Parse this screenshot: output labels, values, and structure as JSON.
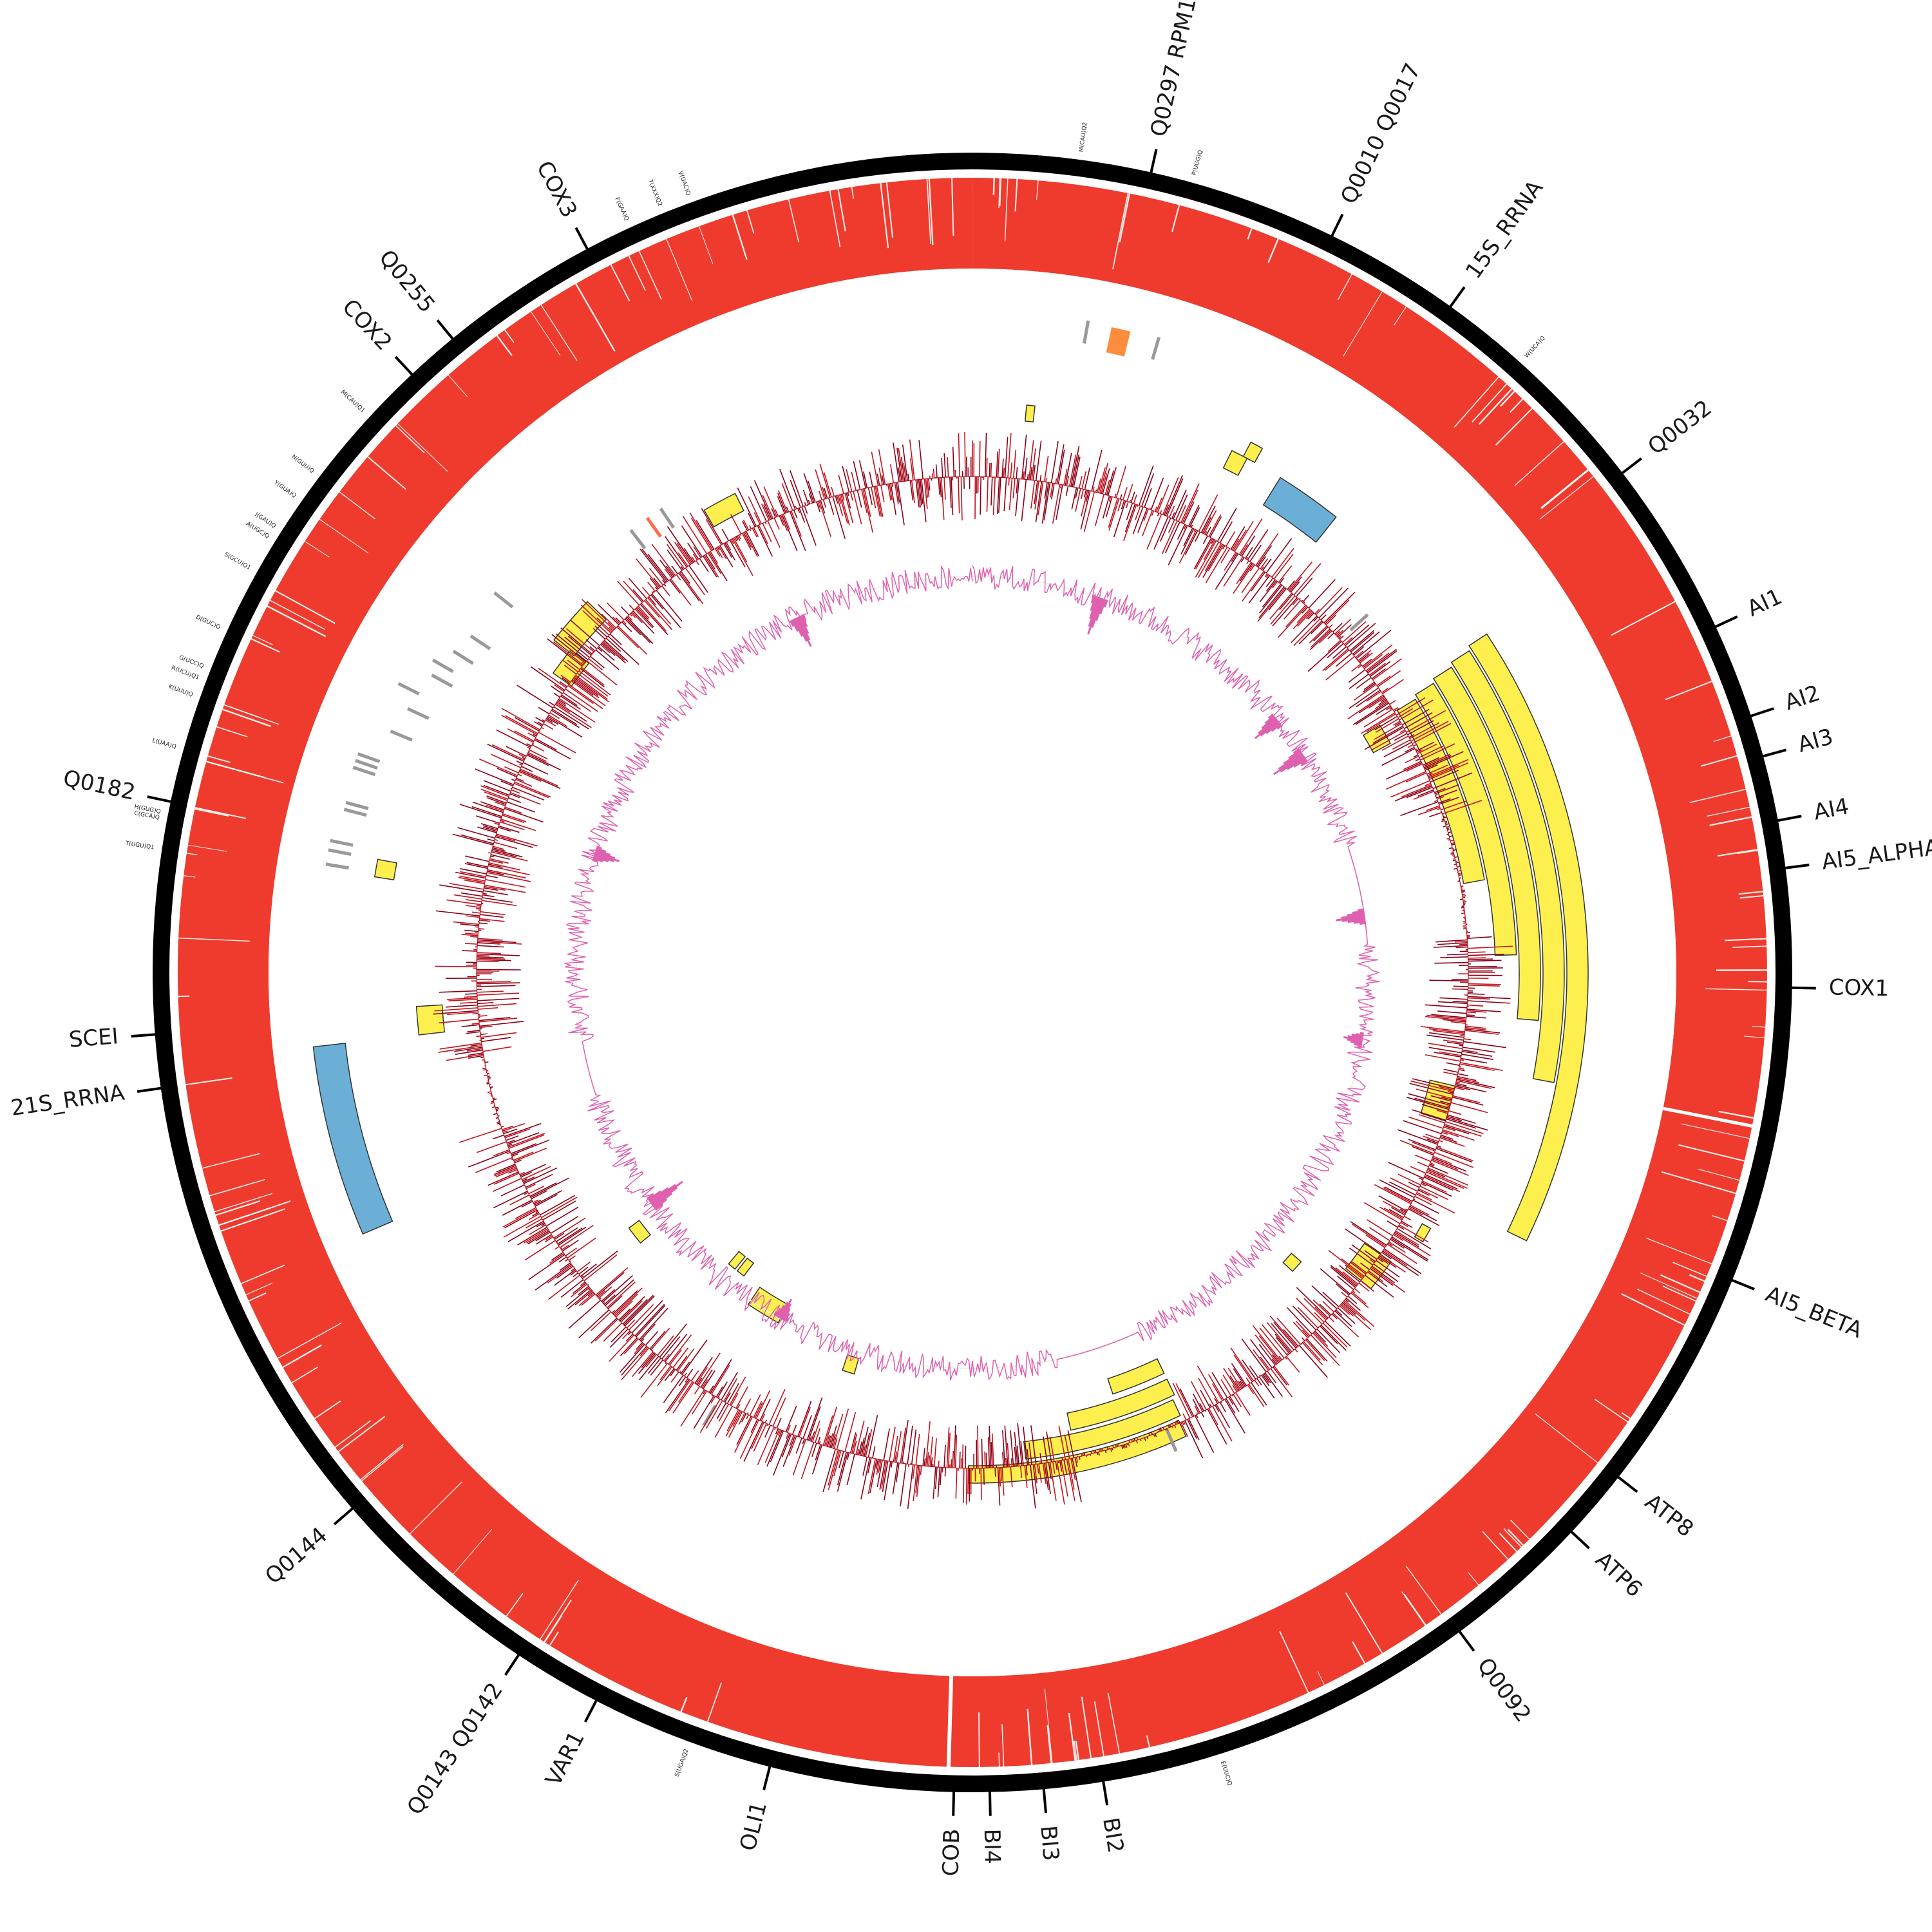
{
  "colors": {
    "ideogram": "#000000",
    "coverage": "#ee3b2e",
    "feature_yellow": "#fdf04e",
    "feature_blue": "#6baed6",
    "feature_orange": "#fd8d3c",
    "trna_gray": "#999999",
    "trna_red": "#fc6c4a",
    "gc_line": "#c0141e",
    "gc_fill_dark": "#8b0016",
    "skew_fill": "#e060b0",
    "skew_alt_fill": "#e8f5e0"
  },
  "genome": {
    "length_bp": 85779
  },
  "gene_labels": [
    {
      "text": "Q0297 RPM1",
      "pos": 3000
    },
    {
      "text": "Q0010 Q0017",
      "pos": 6200
    },
    {
      "text": "15S_RRNA",
      "pos": 8500
    },
    {
      "text": "Q0032",
      "pos": 12500
    },
    {
      "text": "AI1",
      "pos": 15500
    },
    {
      "text": "AI2",
      "pos": 17100
    },
    {
      "text": "AI3",
      "pos": 17800
    },
    {
      "text": "AI4",
      "pos": 18900
    },
    {
      "text": "AI5_ALPHA",
      "pos": 19700
    },
    {
      "text": "COX1",
      "pos": 21700
    },
    {
      "text": "AI5_BETA",
      "pos": 26700
    },
    {
      "text": "ATP8",
      "pos": 30500
    },
    {
      "text": "ATP6",
      "pos": 31700
    },
    {
      "text": "Q0092",
      "pos": 34200
    },
    {
      "text": "BI2",
      "pos": 40700
    },
    {
      "text": "BI3",
      "pos": 41700
    },
    {
      "text": "BI4",
      "pos": 42600
    },
    {
      "text": "COB",
      "pos": 43200
    },
    {
      "text": "OLI1",
      "pos": 46300
    },
    {
      "text": "VAR1",
      "pos": 49400
    },
    {
      "text": "Q0143 Q0142",
      "pos": 50900
    },
    {
      "text": "Q0144",
      "pos": 54600
    },
    {
      "text": "21S_RRNA",
      "pos": 62400
    },
    {
      "text": "SCEI",
      "pos": 63300
    },
    {
      "text": "Q0182",
      "pos": 67200
    },
    {
      "text": "COX2",
      "pos": 75500
    },
    {
      "text": "Q0255",
      "pos": 76400
    },
    {
      "text": "COX3",
      "pos": 79100
    }
  ],
  "trna_labels": [
    {
      "text": "M(CAU)Q2",
      "pos": 1800
    },
    {
      "text": "P(UGG)Q",
      "pos": 3700
    },
    {
      "text": "W(UCA)Q",
      "pos": 10000
    },
    {
      "text": "E(UUC)Q",
      "pos": 38700
    },
    {
      "text": "S(UGA)Q2",
      "pos": 47700
    },
    {
      "text": "T(UGU)Q1",
      "pos": 66400
    },
    {
      "text": "C(GCA)Q",
      "pos": 66900
    },
    {
      "text": "H(GUG)Q",
      "pos": 67000
    },
    {
      "text": "L(UAA)Q",
      "pos": 68100
    },
    {
      "text": "K(UUU)Q",
      "pos": 69000
    },
    {
      "text": "R(UCU)Q1",
      "pos": 69300
    },
    {
      "text": "G(UCC)Q",
      "pos": 69500
    },
    {
      "text": "D(GUC)Q",
      "pos": 70200
    },
    {
      "text": "S(GCU)Q1",
      "pos": 71300
    },
    {
      "text": "A(UGC)Q",
      "pos": 71900
    },
    {
      "text": "I(GAU)Q",
      "pos": 72100
    },
    {
      "text": "Y(GUA)Q",
      "pos": 72700
    },
    {
      "text": "N(GUU)Q",
      "pos": 73200
    },
    {
      "text": "M(CAU)Q1",
      "pos": 74500
    },
    {
      "text": "F(GAA)Q",
      "pos": 79900
    },
    {
      "text": "T(XXX)Q2",
      "pos": 80500
    },
    {
      "text": "V(UAC)Q",
      "pos": 81000
    }
  ],
  "yellow_features": [
    {
      "start": 1300,
      "end": 1500,
      "r_in": 860,
      "r_out": 885
    },
    {
      "start": 6300,
      "end": 6700,
      "r_in": 875,
      "r_out": 905
    },
    {
      "start": 6600,
      "end": 6900,
      "r_in": 905,
      "r_out": 930
    },
    {
      "start": 14000,
      "end": 14600,
      "r_in": 710,
      "r_out": 740
    },
    {
      "start": 13900,
      "end": 19000,
      "r_in": 775,
      "r_out": 808
    },
    {
      "start": 13800,
      "end": 21000,
      "r_in": 812,
      "r_out": 845
    },
    {
      "start": 13700,
      "end": 22600,
      "r_in": 849,
      "r_out": 882
    },
    {
      "start": 13600,
      "end": 24000,
      "r_in": 886,
      "r_out": 919
    },
    {
      "start": 13500,
      "end": 27600,
      "r_in": 923,
      "r_out": 956
    },
    {
      "start": 24600,
      "end": 25600,
      "r_in": 730,
      "r_out": 770
    },
    {
      "start": 28400,
      "end": 28800,
      "r_in": 800,
      "r_out": 815
    },
    {
      "start": 29700,
      "end": 30600,
      "r_in": 740,
      "r_out": 790
    },
    {
      "start": 31300,
      "end": 31700,
      "r_in": 660,
      "r_out": 680
    },
    {
      "start": 36800,
      "end": 38500,
      "r_in": 665,
      "r_out": 690
    },
    {
      "start": 36800,
      "end": 40000,
      "r_in": 700,
      "r_out": 727
    },
    {
      "start": 36900,
      "end": 41400,
      "r_in": 733,
      "r_out": 760
    },
    {
      "start": 37000,
      "end": 43000,
      "r_in": 766,
      "r_out": 793
    },
    {
      "start": 46800,
      "end": 47200,
      "r_in": 625,
      "r_out": 650
    },
    {
      "start": 49800,
      "end": 51000,
      "r_in": 590,
      "r_out": 622
    },
    {
      "start": 51700,
      "end": 52000,
      "r_in": 565,
      "r_out": 590
    },
    {
      "start": 52100,
      "end": 52400,
      "r_in": 565,
      "r_out": 590
    },
    {
      "start": 55000,
      "end": 55600,
      "r_in": 645,
      "r_out": 665
    },
    {
      "start": 62800,
      "end": 63500,
      "r_in": 825,
      "r_out": 865
    },
    {
      "start": 66500,
      "end": 66900,
      "r_in": 910,
      "r_out": 940
    },
    {
      "start": 72800,
      "end": 73600,
      "r_in": 765,
      "r_out": 800
    },
    {
      "start": 73500,
      "end": 74800,
      "r_in": 790,
      "r_out": 830
    },
    {
      "start": 78600,
      "end": 79500,
      "r_in": 800,
      "r_out": 830
    }
  ],
  "blue_features": [
    {
      "start": 7600,
      "end": 9200,
      "r_in": 855,
      "r_out": 905
    },
    {
      "start": 58800,
      "end": 62800,
      "r_in": 980,
      "r_out": 1030
    }
  ],
  "orange_features": [
    {
      "start": 2900,
      "end": 3300,
      "r_in": 985,
      "r_out": 1025
    }
  ],
  "trna_ticks": [
    {
      "pos": 2400,
      "color": "gray",
      "r": 1010
    },
    {
      "pos": 3900,
      "color": "gray",
      "r": 1010
    },
    {
      "pos": 11400,
      "color": "gray",
      "r": 810
    },
    {
      "pos": 37400,
      "color": "gray",
      "r": 790
    },
    {
      "pos": 50200,
      "color": "gray",
      "r": 800
    },
    {
      "pos": 66600,
      "color": "gray",
      "r": 1000
    },
    {
      "pos": 66900,
      "color": "gray",
      "r": 1000
    },
    {
      "pos": 67100,
      "color": "gray",
      "r": 1000
    },
    {
      "pos": 67800,
      "color": "gray",
      "r": 990
    },
    {
      "pos": 67950,
      "color": "gray",
      "r": 990
    },
    {
      "pos": 68700,
      "color": "gray",
      "r": 995
    },
    {
      "pos": 68850,
      "color": "gray",
      "r": 995
    },
    {
      "pos": 69000,
      "color": "gray",
      "r": 995
    },
    {
      "pos": 69700,
      "color": "gray",
      "r": 960
    },
    {
      "pos": 70300,
      "color": "gray",
      "r": 950
    },
    {
      "pos": 70700,
      "color": "gray",
      "r": 980
    },
    {
      "pos": 71200,
      "color": "gray",
      "r": 940
    },
    {
      "pos": 71500,
      "color": "gray",
      "r": 950
    },
    {
      "pos": 71900,
      "color": "gray",
      "r": 930
    },
    {
      "pos": 72400,
      "color": "gray",
      "r": 920
    },
    {
      "pos": 73500,
      "color": "gray",
      "r": 930
    },
    {
      "pos": 76800,
      "color": "gray",
      "r": 850
    },
    {
      "pos": 77300,
      "color": "red",
      "r": 850
    },
    {
      "pos": 77700,
      "color": "gray",
      "r": 850
    }
  ]
}
